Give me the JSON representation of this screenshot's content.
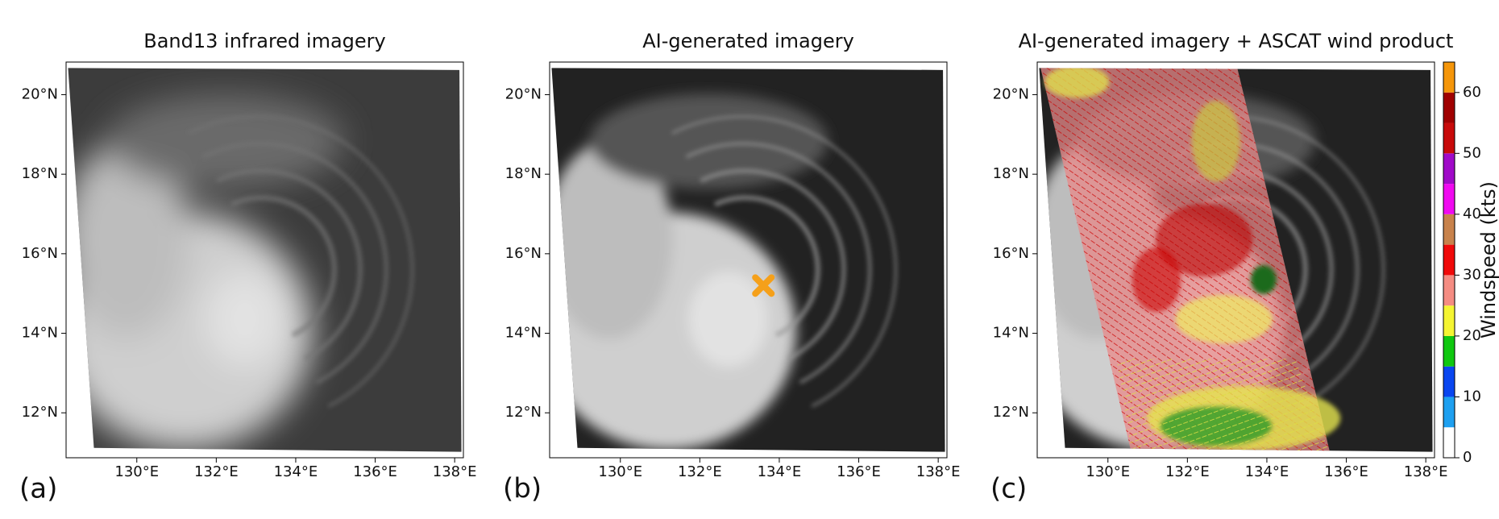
{
  "map": {
    "xlim": [
      128.22,
      138.22
    ],
    "ylim": [
      10.87,
      20.82
    ],
    "xticks": [
      {
        "value": 130,
        "label": "130°E"
      },
      {
        "value": 132,
        "label": "132°E"
      },
      {
        "value": 134,
        "label": "134°E"
      },
      {
        "value": 136,
        "label": "136°E"
      },
      {
        "value": 138,
        "label": "138°E"
      }
    ],
    "yticks": [
      {
        "value": 12,
        "label": "12°N"
      },
      {
        "value": 14,
        "label": "14°N"
      },
      {
        "value": 16,
        "label": "16°N"
      },
      {
        "value": 18,
        "label": "18°N"
      },
      {
        "value": 20,
        "label": "20°N"
      }
    ],
    "panels": [
      {
        "title": "Band13 infrared imagery",
        "label": "(a)"
      },
      {
        "title": "AI-generated imagery",
        "label": "(b)",
        "marker": {
          "lon": 133.6,
          "lat": 15.2,
          "color": "#f5a01a"
        }
      },
      {
        "title": "AI-generated imagery + ASCAT wind product",
        "label": "(c)"
      }
    ]
  },
  "colorbar": {
    "label": "Windspeed (kts)",
    "lim": [
      0,
      65
    ],
    "ticks": [
      0,
      10,
      20,
      30,
      40,
      50,
      60
    ],
    "bounds": [
      0,
      5,
      10,
      15,
      20,
      25,
      30,
      35,
      40,
      45,
      50,
      55,
      60,
      65
    ],
    "colors": [
      "#ffffff",
      "#1ea0f0",
      "#0a46f0",
      "#10c810",
      "#f5f532",
      "#f58c82",
      "#f00a0a",
      "#c8824b",
      "#f00af0",
      "#a00ac8",
      "#c80a0a",
      "#a00000",
      "#f5960a"
    ]
  }
}
